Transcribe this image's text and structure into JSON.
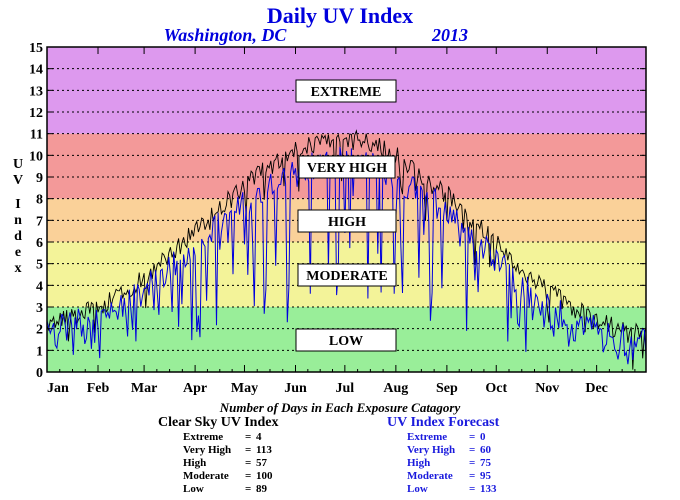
{
  "chart_data": {
    "type": "line",
    "title": "Daily UV Index",
    "location": "Washington, DC",
    "year": "2013",
    "ylabel": "UV Index",
    "ylim": [
      0,
      15
    ],
    "yticks": [
      0,
      1,
      2,
      3,
      4,
      5,
      6,
      7,
      8,
      9,
      10,
      11,
      12,
      13,
      14,
      15
    ],
    "xlim": [
      1,
      365
    ],
    "grid": true,
    "months": [
      "Jan",
      "Feb",
      "Mar",
      "Apr",
      "May",
      "Jun",
      "Jul",
      "Aug",
      "Sep",
      "Oct",
      "Nov",
      "Dec"
    ],
    "categories": [
      {
        "name": "LOW",
        "range": [
          0,
          3
        ],
        "color": "#99ee99"
      },
      {
        "name": "MODERATE",
        "range": [
          3,
          6
        ],
        "color": "#f3f399"
      },
      {
        "name": "HIGH",
        "range": [
          6,
          8
        ],
        "color": "#fad199"
      },
      {
        "name": "VERY HIGH",
        "range": [
          8,
          11
        ],
        "color": "#f39999"
      },
      {
        "name": "EXTREME",
        "range": [
          11,
          15
        ],
        "color": "#dd99ee"
      }
    ],
    "series": [
      {
        "name": "Clear Sky UV Index",
        "color": "#000000",
        "x": [
          1,
          15,
          32,
          45,
          60,
          74,
          91,
          105,
          121,
          135,
          152,
          166,
          182,
          196,
          213,
          227,
          244,
          258,
          274,
          288,
          305,
          319,
          335,
          349,
          365
        ],
        "values": [
          2.0,
          2.6,
          3.0,
          3.5,
          4.3,
          5.3,
          6.5,
          7.5,
          8.6,
          9.4,
          10.2,
          10.6,
          10.8,
          10.6,
          10.0,
          9.2,
          8.3,
          7.2,
          6.0,
          4.8,
          3.8,
          3.0,
          2.4,
          2.0,
          1.9
        ]
      },
      {
        "name": "UV Index Forecast",
        "color": "#0000dd",
        "x": [
          1,
          15,
          32,
          45,
          60,
          74,
          91,
          105,
          121,
          135,
          152,
          166,
          182,
          196,
          213,
          227,
          244,
          258,
          274,
          288,
          305,
          319,
          335,
          349,
          365
        ],
        "values": [
          1.8,
          2.2,
          2.6,
          3.0,
          3.8,
          4.6,
          5.9,
          6.8,
          7.8,
          8.6,
          9.2,
          9.6,
          9.8,
          9.5,
          9.0,
          8.3,
          7.4,
          6.4,
          5.2,
          4.0,
          3.0,
          2.4,
          1.9,
          1.6,
          1.4
        ]
      }
    ]
  },
  "legend": {
    "section_title": "Number of Days in Each Exposure Catagory",
    "clear_sky": {
      "title": "Clear Sky UV Index",
      "rows": [
        {
          "label": "Extreme",
          "value": "4"
        },
        {
          "label": "Very High",
          "value": "113"
        },
        {
          "label": "High",
          "value": "57"
        },
        {
          "label": "Moderate",
          "value": "100"
        },
        {
          "label": "Low",
          "value": "89"
        }
      ]
    },
    "forecast": {
      "title": "UV Index Forecast",
      "rows": [
        {
          "label": "Extreme",
          "value": "0"
        },
        {
          "label": "Very High",
          "value": "60"
        },
        {
          "label": "High",
          "value": "75"
        },
        {
          "label": "Moderate",
          "value": "95"
        },
        {
          "label": "Low",
          "value": "133"
        }
      ]
    }
  }
}
